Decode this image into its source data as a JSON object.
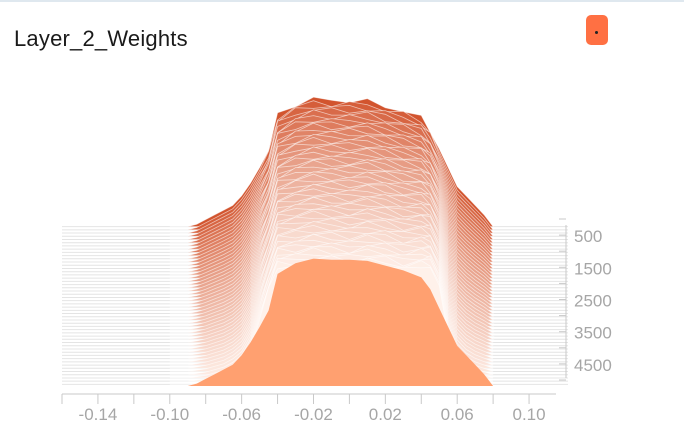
{
  "header": {
    "title": "Layer_2_Weights"
  },
  "run_color": "#ff7043",
  "chart_data": {
    "type": "area",
    "variant": "histogram-offset",
    "title": "Layer_2_Weights",
    "xlabel": "",
    "ylabel": "",
    "x_ticks": [
      "-0.14",
      "-0.10",
      "-0.06",
      "-0.02",
      "0.02",
      "0.06",
      "0.10"
    ],
    "x_tick_values": [
      -0.14,
      -0.1,
      -0.06,
      -0.02,
      0.02,
      0.06,
      0.1
    ],
    "xlim": [
      -0.16,
      0.115
    ],
    "step_ticks": [
      "500",
      "1500",
      "2500",
      "3500",
      "4500"
    ],
    "step_tick_values": [
      500,
      1500,
      2500,
      3500,
      4500
    ],
    "step_range": [
      0,
      5000
    ],
    "step_count": 50,
    "color_first_step": "#fff1ea",
    "color_last_step": "#d2542e",
    "histogram_x": [
      -0.1,
      -0.095,
      -0.09,
      -0.085,
      -0.08,
      -0.075,
      -0.07,
      -0.065,
      -0.06,
      -0.055,
      -0.05,
      -0.045,
      -0.04,
      -0.03,
      -0.02,
      -0.01,
      0.0,
      0.01,
      0.02,
      0.03,
      0.04,
      0.045,
      0.05,
      0.055,
      0.06,
      0.065,
      0.07,
      0.075,
      0.08
    ],
    "first_step_profile": [
      0.0,
      0.0,
      0.0,
      0.02,
      0.06,
      0.1,
      0.14,
      0.18,
      0.26,
      0.37,
      0.5,
      0.64,
      0.95,
      1.04,
      1.08,
      1.07,
      1.07,
      1.06,
      1.02,
      0.98,
      0.92,
      0.82,
      0.66,
      0.5,
      0.34,
      0.26,
      0.18,
      0.1,
      0.0
    ],
    "last_step_profile": [
      0.0,
      0.0,
      0.0,
      0.01,
      0.02,
      0.04,
      0.06,
      0.1,
      0.16,
      0.3,
      0.55,
      0.8,
      1.0,
      1.0,
      1.02,
      1.01,
      0.99,
      1.02,
      1.01,
      0.97,
      1.0,
      1.0,
      0.84,
      0.4,
      0.16,
      0.08,
      0.04,
      0.02,
      0.0
    ]
  }
}
